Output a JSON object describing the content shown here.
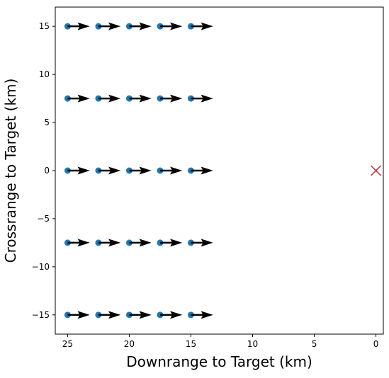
{
  "chart_data": {
    "type": "scatter",
    "title": "",
    "xlabel": "Downrange to Target (km)",
    "ylabel": "Crossrange to Target (km)",
    "xlim": [
      26.0,
      -0.6
    ],
    "ylim": [
      -17.0,
      17.0
    ],
    "x_reversed": true,
    "grid": false,
    "x_ticks": [
      25,
      20,
      15,
      10,
      5,
      0
    ],
    "y_ticks": [
      15,
      10,
      5,
      0,
      -5,
      -10,
      -15
    ],
    "x_tick_labels": [
      "25",
      "20",
      "15",
      "10",
      "5",
      "0"
    ],
    "y_tick_labels": [
      "15",
      "10",
      "5",
      "0",
      "−5",
      "−10",
      "−15"
    ],
    "series": [
      {
        "marker": "circle",
        "color": "#1f77b4",
        "points": [
          {
            "x": 25,
            "y": 15
          },
          {
            "x": 22.5,
            "y": 15
          },
          {
            "x": 20,
            "y": 15
          },
          {
            "x": 17.5,
            "y": 15
          },
          {
            "x": 15,
            "y": 15
          },
          {
            "x": 25,
            "y": 7.5
          },
          {
            "x": 22.5,
            "y": 7.5
          },
          {
            "x": 20,
            "y": 7.5
          },
          {
            "x": 17.5,
            "y": 7.5
          },
          {
            "x": 15,
            "y": 7.5
          },
          {
            "x": 25,
            "y": 0
          },
          {
            "x": 22.5,
            "y": 0
          },
          {
            "x": 20,
            "y": 0
          },
          {
            "x": 17.5,
            "y": 0
          },
          {
            "x": 15,
            "y": 0
          },
          {
            "x": 25,
            "y": -7.5
          },
          {
            "x": 22.5,
            "y": -7.5
          },
          {
            "x": 20,
            "y": -7.5
          },
          {
            "x": 17.5,
            "y": -7.5
          },
          {
            "x": 15,
            "y": -7.5
          },
          {
            "x": 25,
            "y": -15
          },
          {
            "x": 22.5,
            "y": -15
          },
          {
            "x": 20,
            "y": -15
          },
          {
            "x": 17.5,
            "y": -15
          },
          {
            "x": 15,
            "y": -15
          }
        ]
      }
    ],
    "vectors": {
      "color": "#000000",
      "dx": -1.8,
      "dy": 0
    },
    "target": {
      "x": 0,
      "y": 0,
      "marker": "x",
      "color": "#d62728"
    }
  }
}
